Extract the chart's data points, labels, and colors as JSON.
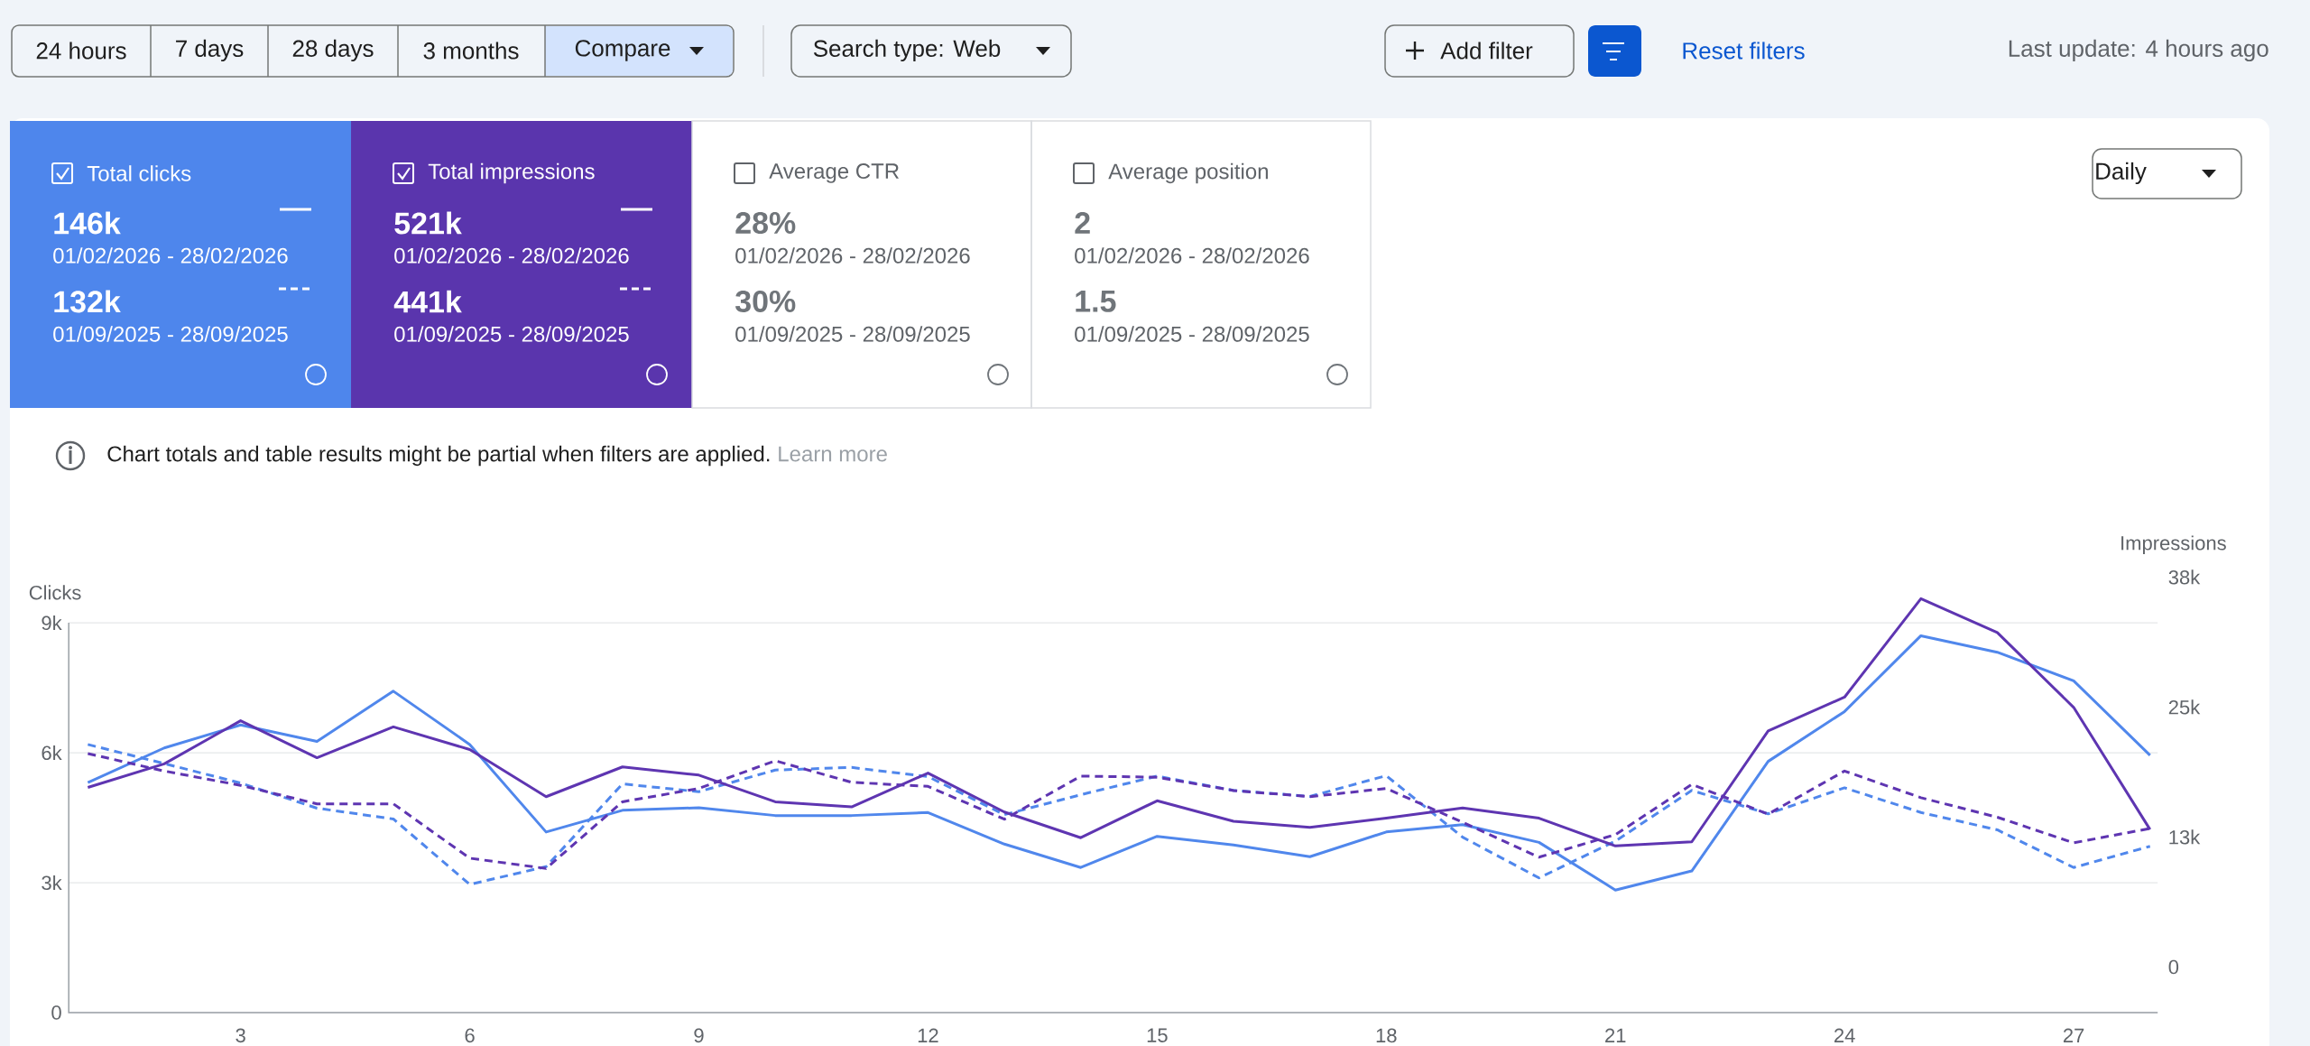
{
  "chart_data": {
    "type": "line",
    "ylabel": "Clicks",
    "y2label": "Impressions",
    "x": [
      1,
      2,
      3,
      4,
      5,
      6,
      7,
      8,
      9,
      10,
      11,
      12,
      13,
      14,
      15,
      16,
      17,
      18,
      19,
      20,
      21,
      22,
      23,
      24,
      25,
      26,
      27,
      28
    ],
    "xlim": [
      0.75,
      28.1
    ],
    "xticks": [
      3,
      6,
      9,
      12,
      15,
      18,
      21,
      24,
      27
    ],
    "ylim": [
      0,
      9000
    ],
    "yticks": [
      0,
      {
        "value": 3000,
        "label": "3k"
      },
      {
        "value": 6000,
        "label": "6k"
      },
      {
        "value": 9000,
        "label": "9k"
      }
    ],
    "y2lim": [
      0,
      38000
    ],
    "y2ticks": [
      0,
      {
        "value": 12667,
        "label": "13k"
      },
      {
        "value": 25333,
        "label": "25k"
      },
      {
        "value": 38000,
        "label": "38k"
      }
    ],
    "grid": "y",
    "series": [
      {
        "color": "#5087ec",
        "line_style": "dashed",
        "values": [
          6190,
          5750,
          5300,
          4720,
          4470,
          2960,
          3370,
          5280,
          5100,
          5600,
          5660,
          5450,
          4570,
          5030,
          5460,
          5130,
          4990,
          5470,
          4050,
          3110,
          3960,
          5130,
          4590,
          5190,
          4620,
          4220,
          3350,
          3840
        ]
      },
      {
        "color": "#5e35b1",
        "axis": "y2",
        "line_style": "dashed",
        "values": [
          20800,
          19100,
          17700,
          15900,
          15900,
          10600,
          9600,
          16100,
          17400,
          20100,
          18000,
          17600,
          14400,
          18600,
          18500,
          17200,
          16600,
          17400,
          14100,
          10700,
          12900,
          17800,
          14900,
          19100,
          16500,
          14600,
          12100,
          13500
        ]
      },
      {
        "color": "#5087ec",
        "line_style": "solid",
        "values": [
          5310,
          6110,
          6640,
          6260,
          7420,
          6190,
          4170,
          4670,
          4730,
          4550,
          4550,
          4620,
          3890,
          3350,
          4070,
          3870,
          3600,
          4170,
          4340,
          3930,
          2830,
          3270,
          5800,
          6950,
          8700,
          8320,
          7660,
          5940
        ]
      },
      {
        "color": "#5e35b1",
        "axis": "y2",
        "line_style": "solid",
        "values": [
          17500,
          19800,
          24000,
          20400,
          23400,
          21200,
          16600,
          19500,
          18700,
          16100,
          15600,
          18900,
          15100,
          12600,
          16200,
          14200,
          13600,
          14500,
          15500,
          14500,
          11800,
          12200,
          23000,
          26300,
          35900,
          32600,
          25300,
          13400
        ]
      }
    ],
    "annotations": [
      "24 hours",
      "7 days",
      "28 days",
      "3 months",
      "Compare",
      "Search type: Web",
      "Add filter",
      "Reset filters",
      "Last update: 4 hours ago",
      "Total clicks",
      "146k",
      "01/02/2026 - 28/02/2026",
      "132k",
      "01/09/2025 - 28/09/2025",
      "Total impressions",
      "521k",
      "01/02/2026 - 28/02/2026",
      "441k",
      "01/09/2025 - 28/09/2025",
      "Average CTR",
      "28%",
      "01/02/2026 - 28/02/2026",
      "30%",
      "01/09/2025 - 28/09/2025",
      "Average position",
      "2",
      "01/02/2026 - 28/02/2026",
      "1.5",
      "01/09/2025 - 28/09/2025",
      "Daily",
      "Chart totals and table results might be partial when filters are applied.",
      "Learn more"
    ]
  }
}
